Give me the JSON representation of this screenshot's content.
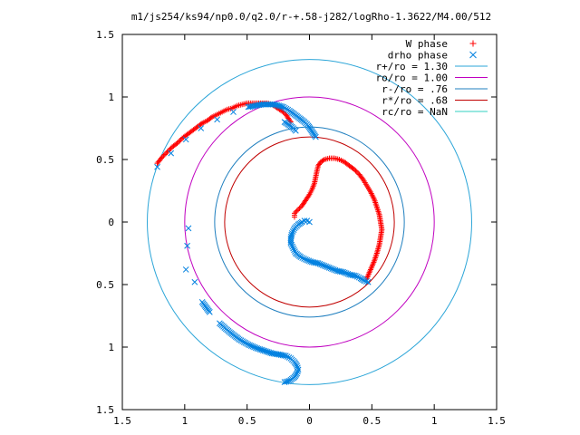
{
  "chart_data": {
    "type": "scatter",
    "title": "m1/js254/ks94/np0.0/q2.0/r-+.58-j282/logRho-1.3622/M4.00/512",
    "xlabel": "",
    "ylabel": "",
    "xlim": [
      -1.5,
      1.5
    ],
    "ylim": [
      -1.5,
      1.5
    ],
    "grid": false,
    "legend_position": "top-right",
    "x_ticks": [
      {
        "value": -1.5,
        "label": "1.5"
      },
      {
        "value": -1.0,
        "label": "1"
      },
      {
        "value": -0.5,
        "label": "0.5"
      },
      {
        "value": 0.0,
        "label": "0"
      },
      {
        "value": 0.5,
        "label": "0.5"
      },
      {
        "value": 1.0,
        "label": "1"
      },
      {
        "value": 1.5,
        "label": "1.5"
      }
    ],
    "y_ticks": [
      {
        "value": 1.5,
        "label": "1.5"
      },
      {
        "value": 1.0,
        "label": "1"
      },
      {
        "value": 0.5,
        "label": "0.5"
      },
      {
        "value": 0.0,
        "label": "0"
      },
      {
        "value": -0.5,
        "label": "0.5"
      },
      {
        "value": -1.0,
        "label": "1"
      },
      {
        "value": -1.5,
        "label": "1.5"
      }
    ],
    "series": [
      {
        "name": "W phase",
        "marker": "plus",
        "color": "#ff0000",
        "points": [
          [
            -1.22,
            0.47
          ],
          [
            -1.18,
            0.52
          ],
          [
            -1.14,
            0.56
          ],
          [
            -1.1,
            0.6
          ],
          [
            -1.06,
            0.63
          ],
          [
            -1.02,
            0.67
          ],
          [
            -0.98,
            0.7
          ],
          [
            -0.94,
            0.73
          ],
          [
            -0.9,
            0.76
          ],
          [
            -0.86,
            0.79
          ],
          [
            -0.82,
            0.81
          ],
          [
            -0.78,
            0.84
          ],
          [
            -0.74,
            0.86
          ],
          [
            -0.7,
            0.88
          ],
          [
            -0.66,
            0.9
          ],
          [
            -0.62,
            0.91
          ],
          [
            -0.58,
            0.93
          ],
          [
            -0.54,
            0.94
          ],
          [
            -0.5,
            0.95
          ],
          [
            -0.46,
            0.95
          ],
          [
            -0.42,
            0.95
          ],
          [
            -0.38,
            0.95
          ],
          [
            -0.34,
            0.95
          ],
          [
            -0.3,
            0.94
          ],
          [
            -0.27,
            0.92
          ],
          [
            -0.24,
            0.9
          ],
          [
            -0.21,
            0.88
          ],
          [
            -0.19,
            0.86
          ],
          [
            -0.17,
            0.83
          ],
          [
            -0.15,
            0.8
          ],
          [
            -0.12,
            0.04
          ],
          [
            -0.12,
            0.07
          ],
          [
            -0.1,
            0.09
          ],
          [
            -0.08,
            0.11
          ],
          [
            -0.06,
            0.13
          ],
          [
            -0.04,
            0.16
          ],
          [
            -0.02,
            0.19
          ],
          [
            0.0,
            0.22
          ],
          [
            0.02,
            0.26
          ],
          [
            0.04,
            0.31
          ],
          [
            0.05,
            0.36
          ],
          [
            0.06,
            0.41
          ],
          [
            0.07,
            0.45
          ],
          [
            0.09,
            0.48
          ],
          [
            0.12,
            0.5
          ],
          [
            0.16,
            0.51
          ],
          [
            0.2,
            0.51
          ],
          [
            0.24,
            0.5
          ],
          [
            0.28,
            0.48
          ],
          [
            0.32,
            0.45
          ],
          [
            0.36,
            0.42
          ],
          [
            0.4,
            0.38
          ],
          [
            0.43,
            0.34
          ],
          [
            0.46,
            0.29
          ],
          [
            0.49,
            0.24
          ],
          [
            0.52,
            0.18
          ],
          [
            0.54,
            0.12
          ],
          [
            0.56,
            0.06
          ],
          [
            0.57,
            0.0
          ],
          [
            0.58,
            -0.06
          ],
          [
            0.57,
            -0.12
          ],
          [
            0.56,
            -0.18
          ],
          [
            0.54,
            -0.25
          ],
          [
            0.52,
            -0.31
          ],
          [
            0.49,
            -0.38
          ],
          [
            0.46,
            -0.45
          ]
        ]
      },
      {
        "name": "drho phase",
        "marker": "cross",
        "color": "#0080e0",
        "points": [
          [
            -1.22,
            0.44
          ],
          [
            -1.11,
            0.55
          ],
          [
            -0.99,
            0.66
          ],
          [
            -0.87,
            0.75
          ],
          [
            -0.74,
            0.82
          ],
          [
            -0.61,
            0.88
          ],
          [
            -0.49,
            0.92
          ],
          [
            -0.38,
            0.94
          ],
          [
            -0.28,
            0.94
          ],
          [
            -0.21,
            0.92
          ],
          [
            -0.16,
            0.89
          ],
          [
            -0.12,
            0.86
          ],
          [
            -0.08,
            0.83
          ],
          [
            -0.04,
            0.8
          ],
          [
            -0.01,
            0.77
          ],
          [
            0.01,
            0.74
          ],
          [
            0.03,
            0.71
          ],
          [
            0.05,
            0.68
          ],
          [
            -0.2,
            0.8
          ],
          [
            -0.14,
            0.76
          ],
          [
            -0.12,
            0.74
          ],
          [
            -0.11,
            0.73
          ],
          [
            -0.98,
            -0.19
          ],
          [
            -0.99,
            -0.38
          ],
          [
            -0.97,
            -0.05
          ],
          [
            -0.92,
            -0.48
          ],
          [
            -0.86,
            -0.64
          ],
          [
            -0.8,
            -0.72
          ],
          [
            -0.72,
            -0.81
          ],
          [
            -0.64,
            -0.88
          ],
          [
            -0.56,
            -0.94
          ],
          [
            -0.49,
            -0.98
          ],
          [
            -0.42,
            -1.01
          ],
          [
            -0.36,
            -1.03
          ],
          [
            -0.3,
            -1.05
          ],
          [
            -0.24,
            -1.06
          ],
          [
            -0.19,
            -1.07
          ],
          [
            -0.15,
            -1.09
          ],
          [
            -0.12,
            -1.12
          ],
          [
            -0.1,
            -1.15
          ],
          [
            -0.09,
            -1.18
          ],
          [
            -0.1,
            -1.21
          ],
          [
            -0.12,
            -1.24
          ],
          [
            -0.16,
            -1.27
          ],
          [
            -0.2,
            -1.28
          ],
          [
            0.0,
            0.0
          ],
          [
            -0.02,
            0.01
          ],
          [
            -0.04,
            0.01
          ],
          [
            -0.06,
            0.0
          ],
          [
            -0.09,
            -0.02
          ],
          [
            -0.12,
            -0.05
          ],
          [
            -0.14,
            -0.09
          ],
          [
            -0.15,
            -0.13
          ],
          [
            -0.15,
            -0.17
          ],
          [
            -0.13,
            -0.21
          ],
          [
            -0.11,
            -0.25
          ],
          [
            -0.07,
            -0.28
          ],
          [
            -0.03,
            -0.3
          ],
          [
            0.02,
            -0.32
          ],
          [
            0.07,
            -0.33
          ],
          [
            0.12,
            -0.35
          ],
          [
            0.17,
            -0.37
          ],
          [
            0.22,
            -0.39
          ],
          [
            0.27,
            -0.4
          ],
          [
            0.32,
            -0.42
          ],
          [
            0.37,
            -0.43
          ],
          [
            0.41,
            -0.45
          ],
          [
            0.44,
            -0.47
          ],
          [
            0.47,
            -0.48
          ]
        ]
      }
    ],
    "circles": [
      {
        "name": "r+/ro = 1.30",
        "radius": 1.3,
        "color": "#2ba5d8"
      },
      {
        "name": "ro/ro = 1.00",
        "radius": 1.0,
        "color": "#c000c0"
      },
      {
        "name": "r-/ro = .76",
        "radius": 0.76,
        "color": "#1f7fbf"
      },
      {
        "name": "r*/ro = .68",
        "radius": 0.68,
        "color": "#c00000"
      },
      {
        "name": "rc/ro = NaN",
        "radius": null,
        "color": "#30d0c0"
      }
    ]
  }
}
